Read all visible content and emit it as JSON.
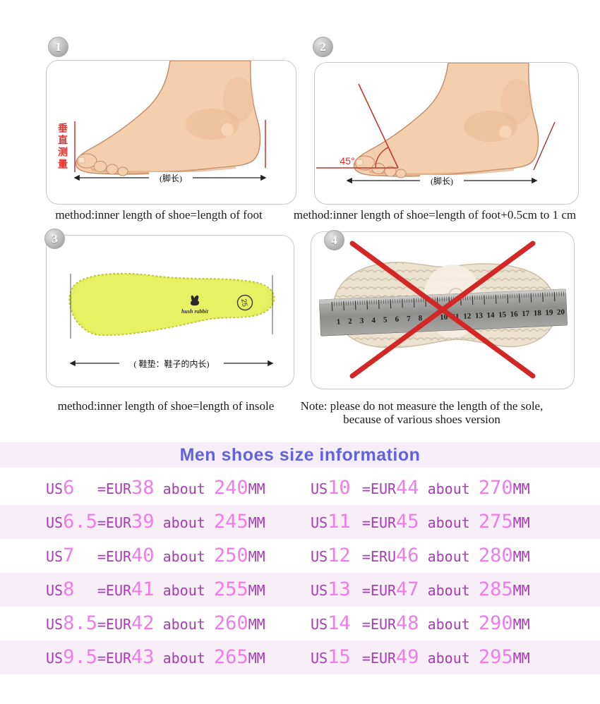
{
  "panels": {
    "p1": {
      "number": "1",
      "caption": "method:inner length of shoe=length of foot",
      "vertical_label": "垂直测量",
      "arrow_label": "(脚长)"
    },
    "p2": {
      "number": "2",
      "caption": "method:inner length of shoe=length of foot+0.5cm to 1 cm",
      "angle_label": "45°",
      "arrow_label": "(脚长)"
    },
    "p3": {
      "number": "3",
      "caption": "method:inner length of shoe=length of insole",
      "arrow_label": "( 鞋垫：鞋子的内长)",
      "logo_text": "hush rabbit",
      "insole_size_badge": "25"
    },
    "p4": {
      "number": "4",
      "note_line1": "Note: please do not measure the length of the sole,",
      "note_line2": "because of various shoes version",
      "ruler_numbers": [
        1,
        2,
        3,
        4,
        5,
        6,
        7,
        8,
        9,
        10,
        11,
        12,
        13,
        14,
        15,
        16,
        17,
        18,
        19,
        20
      ]
    }
  },
  "size_table": {
    "title": "Men shoes size information",
    "colors": {
      "title_text": "#6262dc",
      "title_band_bg": "#f5edf7",
      "row_alt_bg": "#f7eef8",
      "letters": "#a93bb7",
      "numbers": "#ee7ce9"
    },
    "rows": [
      {
        "left": {
          "us_label": "US",
          "us_value": "6  ",
          "eq_label": "=EUR",
          "eur_value": "38",
          "about_label": " about ",
          "mm_value": "240",
          "unit_label": "MM"
        },
        "right": {
          "us_label": "US",
          "us_value": "10 ",
          "eq_label": "=EUR",
          "eur_value": "44",
          "about_label": " about ",
          "mm_value": "270",
          "unit_label": "MM"
        }
      },
      {
        "left": {
          "us_label": "US",
          "us_value": "6.5",
          "eq_label": "=EUR",
          "eur_value": "39",
          "about_label": " about ",
          "mm_value": "245",
          "unit_label": "MM"
        },
        "right": {
          "us_label": "US",
          "us_value": "11 ",
          "eq_label": "=EUR",
          "eur_value": "45",
          "about_label": " about ",
          "mm_value": "275",
          "unit_label": "MM"
        }
      },
      {
        "left": {
          "us_label": "US",
          "us_value": "7  ",
          "eq_label": "=EUR",
          "eur_value": "40",
          "about_label": " about ",
          "mm_value": "250",
          "unit_label": "MM"
        },
        "right": {
          "us_label": "US",
          "us_value": "12 ",
          "eq_label": "=ERU",
          "eur_value": "46",
          "about_label": " about ",
          "mm_value": "280",
          "unit_label": "MM"
        }
      },
      {
        "left": {
          "us_label": "US",
          "us_value": "8  ",
          "eq_label": "=EUR",
          "eur_value": "41",
          "about_label": " about ",
          "mm_value": "255",
          "unit_label": "MM"
        },
        "right": {
          "us_label": "US",
          "us_value": "13 ",
          "eq_label": "=EUR",
          "eur_value": "47",
          "about_label": " about ",
          "mm_value": "285",
          "unit_label": "MM"
        }
      },
      {
        "left": {
          "us_label": "US",
          "us_value": "8.5",
          "eq_label": "=EUR",
          "eur_value": "42",
          "about_label": " about ",
          "mm_value": "260",
          "unit_label": "MM"
        },
        "right": {
          "us_label": "US",
          "us_value": "14 ",
          "eq_label": "=EUR",
          "eur_value": "48",
          "about_label": " about ",
          "mm_value": "290",
          "unit_label": "MM"
        }
      },
      {
        "left": {
          "us_label": "US",
          "us_value": "9.5",
          "eq_label": "=EUR",
          "eur_value": "43",
          "about_label": " about ",
          "mm_value": "265",
          "unit_label": "MM"
        },
        "right": {
          "us_label": "US",
          "us_value": "15 ",
          "eq_label": "=EUR",
          "eur_value": "49",
          "about_label": " about ",
          "mm_value": "295",
          "unit_label": "MM"
        }
      }
    ]
  }
}
